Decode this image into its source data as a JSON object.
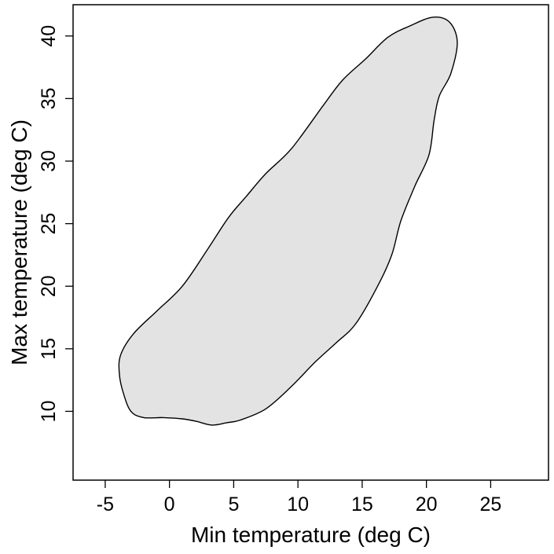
{
  "chart_data": {
    "type": "area",
    "xlabel": "Min temperature (deg C)",
    "ylabel": "Max temperature (deg C)",
    "xlim": [
      -7.5,
      29.5
    ],
    "ylim": [
      4.5,
      42.5
    ],
    "xticks": [
      -5,
      0,
      5,
      10,
      15,
      20,
      25
    ],
    "yticks": [
      10,
      15,
      20,
      25,
      30,
      35,
      40
    ],
    "grid": false,
    "fill_color": "#e3e3e3",
    "stroke_color": "#000000",
    "series": [
      {
        "points": [
          [
            20.5,
            41.5
          ],
          [
            21.8,
            41.1
          ],
          [
            22.4,
            39.5
          ],
          [
            21.9,
            37.0
          ],
          [
            21.0,
            35.2
          ],
          [
            20.6,
            33.3
          ],
          [
            20.2,
            30.5
          ],
          [
            19.1,
            28.0
          ],
          [
            18.0,
            25.2
          ],
          [
            17.3,
            22.5
          ],
          [
            16.2,
            20.0
          ],
          [
            14.5,
            17.0
          ],
          [
            13.0,
            15.5
          ],
          [
            11.4,
            14.0
          ],
          [
            9.5,
            12.0
          ],
          [
            7.5,
            10.2
          ],
          [
            5.5,
            9.3
          ],
          [
            4.5,
            9.1
          ],
          [
            3.3,
            8.9
          ],
          [
            2.1,
            9.2
          ],
          [
            1.0,
            9.4
          ],
          [
            -0.5,
            9.5
          ],
          [
            -2.0,
            9.5
          ],
          [
            -3.0,
            10.0
          ],
          [
            -3.6,
            11.5
          ],
          [
            -3.9,
            13.0
          ],
          [
            -3.8,
            14.5
          ],
          [
            -2.8,
            16.2
          ],
          [
            -1.0,
            18.0
          ],
          [
            1.0,
            20.0
          ],
          [
            3.0,
            23.0
          ],
          [
            4.6,
            25.5
          ],
          [
            6.0,
            27.2
          ],
          [
            7.5,
            29.0
          ],
          [
            9.5,
            31.0
          ],
          [
            12.0,
            34.5
          ],
          [
            13.5,
            36.5
          ],
          [
            15.3,
            38.2
          ],
          [
            17.0,
            39.9
          ],
          [
            18.7,
            40.8
          ]
        ]
      }
    ]
  }
}
